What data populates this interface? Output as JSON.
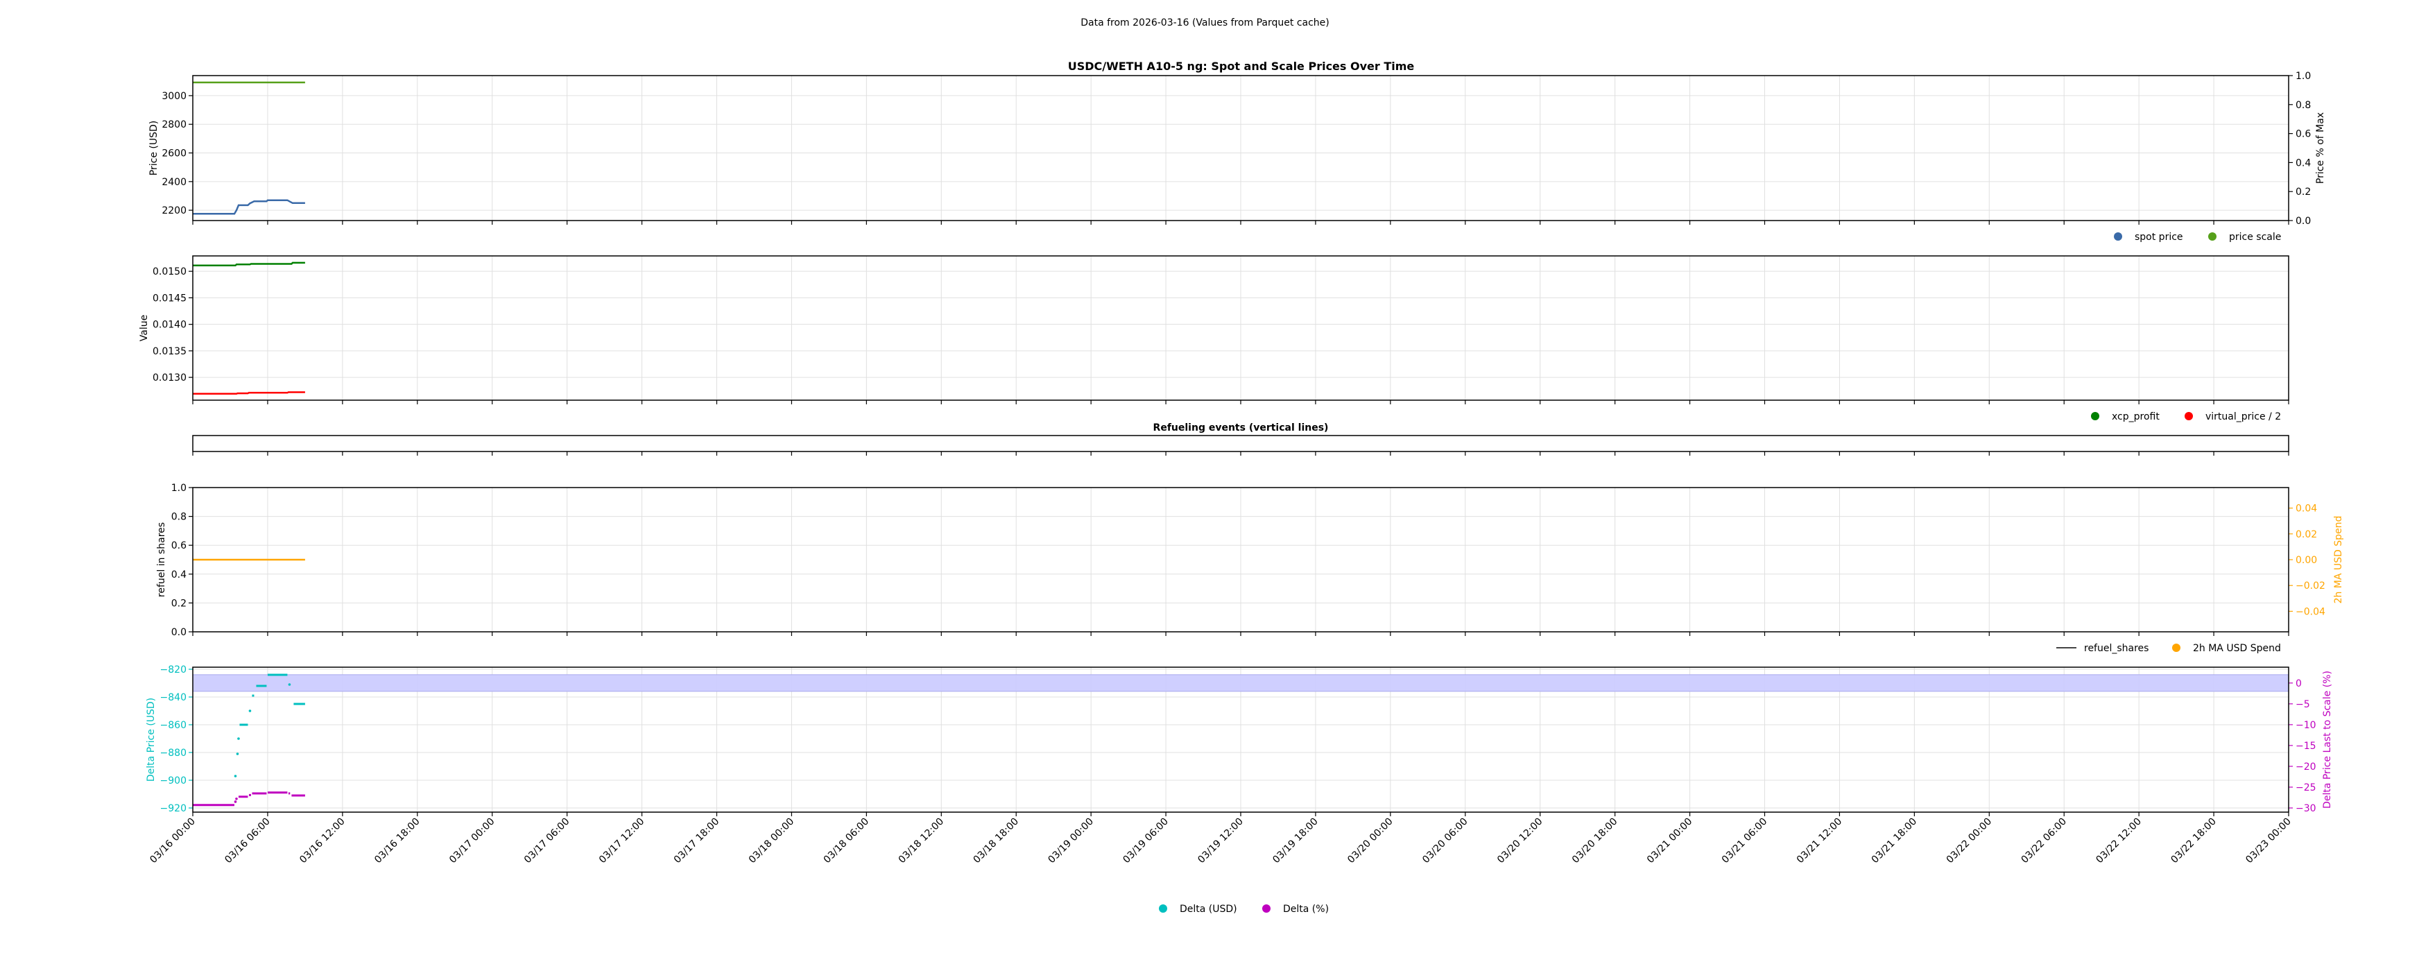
{
  "header": {
    "subtitle": "Data from 2026-03-16 (Values from Parquet cache)",
    "title": "USDC/WETH A10-5 ng: Spot and Scale Prices Over Time"
  },
  "colors": {
    "spot_price": "#3a6aa8",
    "price_scale": "#56a01a",
    "xcp_profit": "#008000",
    "virtual_price": "#ff0000",
    "ma_spend": "#ffa500",
    "refuel_shares": "#444444",
    "delta_usd": "#00bfbf",
    "delta_pct": "#bf00bf",
    "band": "#ccccff",
    "grid": "#e0e0e0"
  },
  "chart_data": [
    {
      "type": "line",
      "title": "USDC/WETH A10-5 ng: Spot and Scale Prices Over Time",
      "ylabel": "Price (USD)",
      "ylabel_right": "Price % of Max",
      "xlim": [
        "2026-03-16 00:00",
        "2026-03-23 00:00"
      ],
      "ylim": [
        2128,
        3140
      ],
      "ylim_right": [
        0,
        1
      ],
      "yticks": [
        2200,
        2400,
        2600,
        2800,
        3000
      ],
      "yticks_right": [
        "0.0",
        "0.2",
        "0.4",
        "0.6",
        "0.8",
        "1.0"
      ],
      "grid": true,
      "legend": "below-right",
      "series": [
        {
          "name": "spot price",
          "color_key": "spot_price",
          "points": [
            [
              "2026-03-16 00:00",
              2175
            ],
            [
              "2026-03-16 03:20",
              2175
            ],
            [
              "2026-03-16 03:30",
              2200
            ],
            [
              "2026-03-16 03:40",
              2235
            ],
            [
              "2026-03-16 04:25",
              2235
            ],
            [
              "2026-03-16 04:35",
              2248
            ],
            [
              "2026-03-16 04:55",
              2262
            ],
            [
              "2026-03-16 05:55",
              2262
            ],
            [
              "2026-03-16 06:00",
              2270
            ],
            [
              "2026-03-16 07:35",
              2270
            ],
            [
              "2026-03-16 07:50",
              2258
            ],
            [
              "2026-03-16 08:00",
              2250
            ],
            [
              "2026-03-16 09:00",
              2250
            ]
          ]
        },
        {
          "name": "price scale",
          "color_key": "price_scale",
          "points": [
            [
              "2026-03-16 00:00",
              3092
            ],
            [
              "2026-03-16 09:00",
              3092
            ]
          ]
        }
      ]
    },
    {
      "type": "line",
      "ylabel": "Value",
      "ylim": [
        0.01257,
        0.01529
      ],
      "yticks": [
        "0.0130",
        "0.0135",
        "0.0140",
        "0.0145",
        "0.0150"
      ],
      "grid": true,
      "legend": "below-right",
      "series": [
        {
          "name": "xcp_profit",
          "color_key": "xcp_profit",
          "points": [
            [
              "2026-03-16 00:00",
              0.01511
            ],
            [
              "2026-03-16 03:25",
              0.01511
            ],
            [
              "2026-03-16 03:30",
              0.01513
            ],
            [
              "2026-03-16 04:35",
              0.01513
            ],
            [
              "2026-03-16 04:40",
              0.01514
            ],
            [
              "2026-03-16 07:55",
              0.01514
            ],
            [
              "2026-03-16 08:00",
              0.01516
            ],
            [
              "2026-03-16 09:00",
              0.01516
            ]
          ]
        },
        {
          "name": "virtual_price / 2",
          "color_key": "virtual_price",
          "points": [
            [
              "2026-03-16 00:00",
              0.01269
            ],
            [
              "2026-03-16 03:30",
              0.01269
            ],
            [
              "2026-03-16 03:35",
              0.0127
            ],
            [
              "2026-03-16 04:25",
              0.0127
            ],
            [
              "2026-03-16 04:30",
              0.01271
            ],
            [
              "2026-03-16 07:35",
              0.01271
            ],
            [
              "2026-03-16 07:40",
              0.01272
            ],
            [
              "2026-03-16 09:00",
              0.01272
            ]
          ]
        }
      ]
    },
    {
      "type": "line",
      "title": "Refueling events (vertical lines)",
      "series": []
    },
    {
      "type": "line",
      "ylabel": "refuel in shares",
      "ylabel_right": "2h MA USD Spend",
      "ylim": [
        0,
        1
      ],
      "ylim_right": [
        -0.0559,
        0.0559
      ],
      "yticks": [
        "0.0",
        "0.2",
        "0.4",
        "0.6",
        "0.8",
        "1.0"
      ],
      "yticks_right": [
        "−0.04",
        "−0.02",
        "0.00",
        "0.02",
        "0.04"
      ],
      "grid": true,
      "legend": "below-right",
      "series": [
        {
          "name": "refuel_shares",
          "color_key": "refuel_shares",
          "points": []
        },
        {
          "name": "2h MA USD Spend",
          "color_key": "ma_spend",
          "axis": "right",
          "points": [
            [
              "2026-03-16 00:00",
              0
            ],
            [
              "2026-03-16 09:00",
              0
            ]
          ]
        }
      ]
    },
    {
      "type": "scatter",
      "ylabel": "Delta Price (USD)",
      "ylabel_right": "Delta Price Last to Scale (%)",
      "ylim": [
        -923,
        -818.5
      ],
      "ylim_right": [
        -31,
        3.8
      ],
      "yticks": [
        "−920",
        "−900",
        "−880",
        "−860",
        "−840",
        "−820"
      ],
      "yticks_right": [
        "−30",
        "−25",
        "−20",
        "−15",
        "−10",
        "−5",
        "0"
      ],
      "band_right": [
        -2,
        2
      ],
      "grid": true,
      "legend": "below-center",
      "series": [
        {
          "name": "Delta (USD)",
          "color_key": "delta_usd",
          "segments": [
            [
              "2026-03-16 03:25",
              "2026-03-16 03:25",
              -897
            ],
            [
              "2026-03-16 03:35",
              "2026-03-16 03:35",
              -881
            ],
            [
              "2026-03-16 03:40",
              "2026-03-16 03:40",
              -870
            ],
            [
              "2026-03-16 03:45",
              "2026-03-16 04:25",
              -860
            ],
            [
              "2026-03-16 04:35",
              "2026-03-16 04:40",
              -850
            ],
            [
              "2026-03-16 04:45",
              "2026-03-16 04:55",
              -839
            ],
            [
              "2026-03-16 05:05",
              "2026-03-16 05:55",
              -832
            ],
            [
              "2026-03-16 06:00",
              "2026-03-16 07:35",
              -824
            ],
            [
              "2026-03-16 07:45",
              "2026-03-16 07:48",
              -831
            ],
            [
              "2026-03-16 08:05",
              "2026-03-16 09:00",
              -845
            ]
          ]
        },
        {
          "name": "Delta (%)",
          "color_key": "delta_pct",
          "axis": "right",
          "segments": [
            [
              "2026-03-16 00:00",
              "2026-03-16 03:20",
              -29.3
            ],
            [
              "2026-03-16 03:25",
              "2026-03-16 03:25",
              -28.5
            ],
            [
              "2026-03-16 03:30",
              "2026-03-16 03:30",
              -27.8
            ],
            [
              "2026-03-16 03:40",
              "2026-03-16 04:25",
              -27.3
            ],
            [
              "2026-03-16 04:30",
              "2026-03-16 04:40",
              -26.9
            ],
            [
              "2026-03-16 04:45",
              "2026-03-16 05:55",
              -26.5
            ],
            [
              "2026-03-16 06:00",
              "2026-03-16 07:35",
              -26.3
            ],
            [
              "2026-03-16 07:40",
              "2026-03-16 07:48",
              -26.5
            ],
            [
              "2026-03-16 07:55",
              "2026-03-16 09:00",
              -27.0
            ]
          ]
        }
      ]
    }
  ],
  "xticks": [
    "03/16 00:00",
    "03/16 06:00",
    "03/16 12:00",
    "03/16 18:00",
    "03/17 00:00",
    "03/17 06:00",
    "03/17 12:00",
    "03/17 18:00",
    "03/18 00:00",
    "03/18 06:00",
    "03/18 12:00",
    "03/18 18:00",
    "03/19 00:00",
    "03/19 06:00",
    "03/19 12:00",
    "03/19 18:00",
    "03/20 00:00",
    "03/20 06:00",
    "03/20 12:00",
    "03/20 18:00",
    "03/21 00:00",
    "03/21 06:00",
    "03/21 12:00",
    "03/21 18:00",
    "03/22 00:00",
    "03/22 06:00",
    "03/22 12:00",
    "03/22 18:00",
    "03/23 00:00"
  ]
}
